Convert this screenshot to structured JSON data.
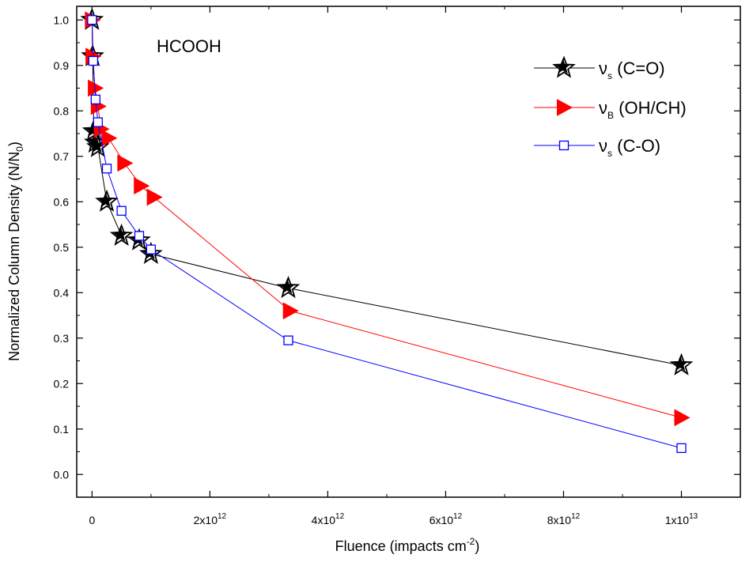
{
  "chart_data": {
    "type": "line",
    "annotation": "HCOOH",
    "xlabel": {
      "main": "Fluence (impacts cm",
      "sup": "-2",
      "close": ")"
    },
    "ylabel": {
      "main": "Normalized Column Density (N/N",
      "sub": "0",
      "close": ")"
    },
    "xlim": [
      -260000000000.0,
      11000000000000.0
    ],
    "ylim": [
      -0.05,
      1.03
    ],
    "x_ticks": [
      {
        "value": 0,
        "base": "0",
        "exp": ""
      },
      {
        "value": 2000000000000.0,
        "base": "2x10",
        "exp": "12"
      },
      {
        "value": 4000000000000.0,
        "base": "4x10",
        "exp": "12"
      },
      {
        "value": 6000000000000.0,
        "base": "6x10",
        "exp": "12"
      },
      {
        "value": 8000000000000.0,
        "base": "8x10",
        "exp": "12"
      },
      {
        "value": 10000000000000.0,
        "base": "1x10",
        "exp": "13"
      }
    ],
    "y_ticks": [
      "0.0",
      "0.1",
      "0.2",
      "0.3",
      "0.4",
      "0.5",
      "0.6",
      "0.7",
      "0.8",
      "0.9",
      "1.0"
    ],
    "series": [
      {
        "name": "νs (C=O)",
        "legend_symbol": "ν",
        "legend_sub": "s",
        "legend_text": "(C=O)",
        "marker": "star",
        "color": "#000000",
        "x": [
          0,
          10000000000.0,
          30000000000.0,
          60000000000.0,
          100000000000.0,
          250000000000.0,
          500000000000.0,
          800000000000.0,
          1000000000000.0,
          3330000000000.0,
          10000000000000.0
        ],
        "y": [
          1.0,
          0.92,
          0.755,
          0.73,
          0.72,
          0.6,
          0.525,
          0.515,
          0.485,
          0.41,
          0.24
        ]
      },
      {
        "name": "νB (OH/CH)",
        "legend_symbol": "ν",
        "legend_sub": "B",
        "legend_text": "(OH/CH)",
        "marker": "triangle-right",
        "color": "#ff0000",
        "x": [
          0,
          10000000000.0,
          50000000000.0,
          100000000000.0,
          150000000000.0,
          280000000000.0,
          550000000000.0,
          830000000000.0,
          1050000000000.0,
          3360000000000.0,
          10000000000000.0
        ],
        "y": [
          1.0,
          0.92,
          0.85,
          0.81,
          0.76,
          0.74,
          0.685,
          0.635,
          0.61,
          0.36,
          0.125
        ]
      },
      {
        "name": "νs (C-O)",
        "legend_symbol": "ν",
        "legend_sub": "s",
        "legend_text": "(C-O)",
        "marker": "square-open",
        "color": "#0000ff",
        "x": [
          0,
          20000000000.0,
          60000000000.0,
          100000000000.0,
          250000000000.0,
          500000000000.0,
          800000000000.0,
          1000000000000.0,
          3330000000000.0,
          10000000000000.0
        ],
        "y": [
          1.0,
          0.91,
          0.825,
          0.775,
          0.673,
          0.58,
          0.525,
          0.495,
          0.295,
          0.058
        ]
      }
    ]
  }
}
